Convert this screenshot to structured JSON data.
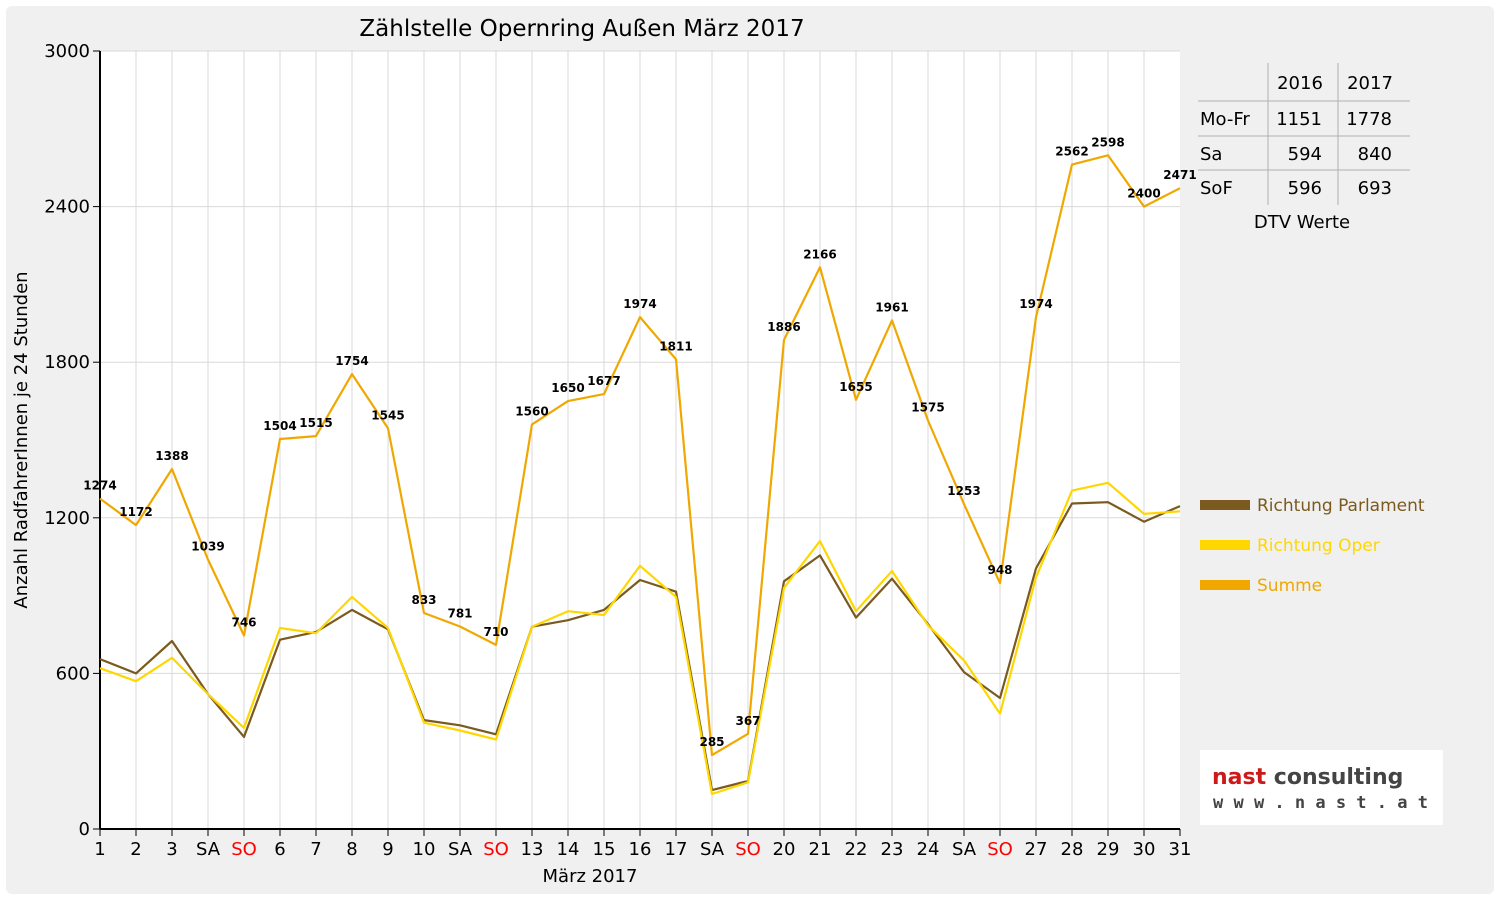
{
  "chart_data": {
    "type": "line",
    "title": "Zählstelle Opernring Außen März 2017",
    "xlabel": "März 2017",
    "ylabel": "Anzahl RadfahrerInnen je 24 Stunden",
    "ylim": [
      0,
      3000
    ],
    "yticks": [
      "0",
      "600",
      "1200",
      "1800",
      "2400",
      "3000"
    ],
    "grid": true,
    "legend_position": "right",
    "categories": [
      "1",
      "2",
      "3",
      "SA",
      "SO",
      "6",
      "7",
      "8",
      "9",
      "10",
      "SA",
      "SO",
      "13",
      "14",
      "15",
      "16",
      "17",
      "SA",
      "SO",
      "20",
      "21",
      "22",
      "23",
      "24",
      "SA",
      "SO",
      "27",
      "28",
      "29",
      "30",
      "31"
    ],
    "highlight_categories": {
      "SO": "#ff0000"
    },
    "series": [
      {
        "name": "Richtung Parlament",
        "color": "#7a5a1e",
        "values": [
          655,
          600,
          725,
          520,
          355,
          730,
          760,
          845,
          770,
          420,
          400,
          365,
          780,
          805,
          845,
          960,
          915,
          150,
          185,
          955,
          1055,
          815,
          965,
          790,
          605,
          505,
          1005,
          1255,
          1260,
          1185,
          1245
        ]
      },
      {
        "name": "Richtung Oper",
        "color": "#ffd700",
        "values": [
          620,
          570,
          660,
          520,
          390,
          775,
          755,
          895,
          775,
          410,
          380,
          345,
          780,
          840,
          825,
          1015,
          895,
          135,
          180,
          930,
          1110,
          840,
          995,
          785,
          650,
          445,
          970,
          1305,
          1335,
          1215,
          1225
        ]
      },
      {
        "name": "Summe",
        "color": "#f0a800",
        "values": [
          1274,
          1172,
          1388,
          1039,
          746,
          1504,
          1515,
          1754,
          1545,
          833,
          781,
          710,
          1560,
          1650,
          1677,
          1974,
          1811,
          285,
          367,
          1886,
          2166,
          1655,
          1961,
          1575,
          1253,
          948,
          1974,
          2562,
          2598,
          2400,
          2471
        ],
        "data_labels": [
          "1274",
          "1172",
          "1388",
          "1039",
          "746",
          "1504",
          "1515",
          "1754",
          "1545",
          "833",
          "781",
          "710",
          "1560",
          "1650",
          "1677",
          "1974",
          "1811",
          "285",
          "367",
          "1886",
          "2166",
          "1655",
          "1961",
          "1575",
          "1253",
          "948",
          "1974",
          "2562",
          "2598",
          "2400",
          "2471"
        ]
      }
    ]
  },
  "dtv_table": {
    "caption": "DTV Werte",
    "columns": [
      "",
      "2016",
      "2017"
    ],
    "rows": [
      [
        "Mo-Fr",
        "1151",
        "1778"
      ],
      [
        "Sa",
        "594",
        "840"
      ],
      [
        "SoF",
        "596",
        "693"
      ]
    ]
  },
  "branding": {
    "name_part1": "nast",
    "name_part2": " consulting",
    "url": "w w w . n a s t . a t",
    "color1": "#cc1a1a",
    "color2": "#444444"
  }
}
